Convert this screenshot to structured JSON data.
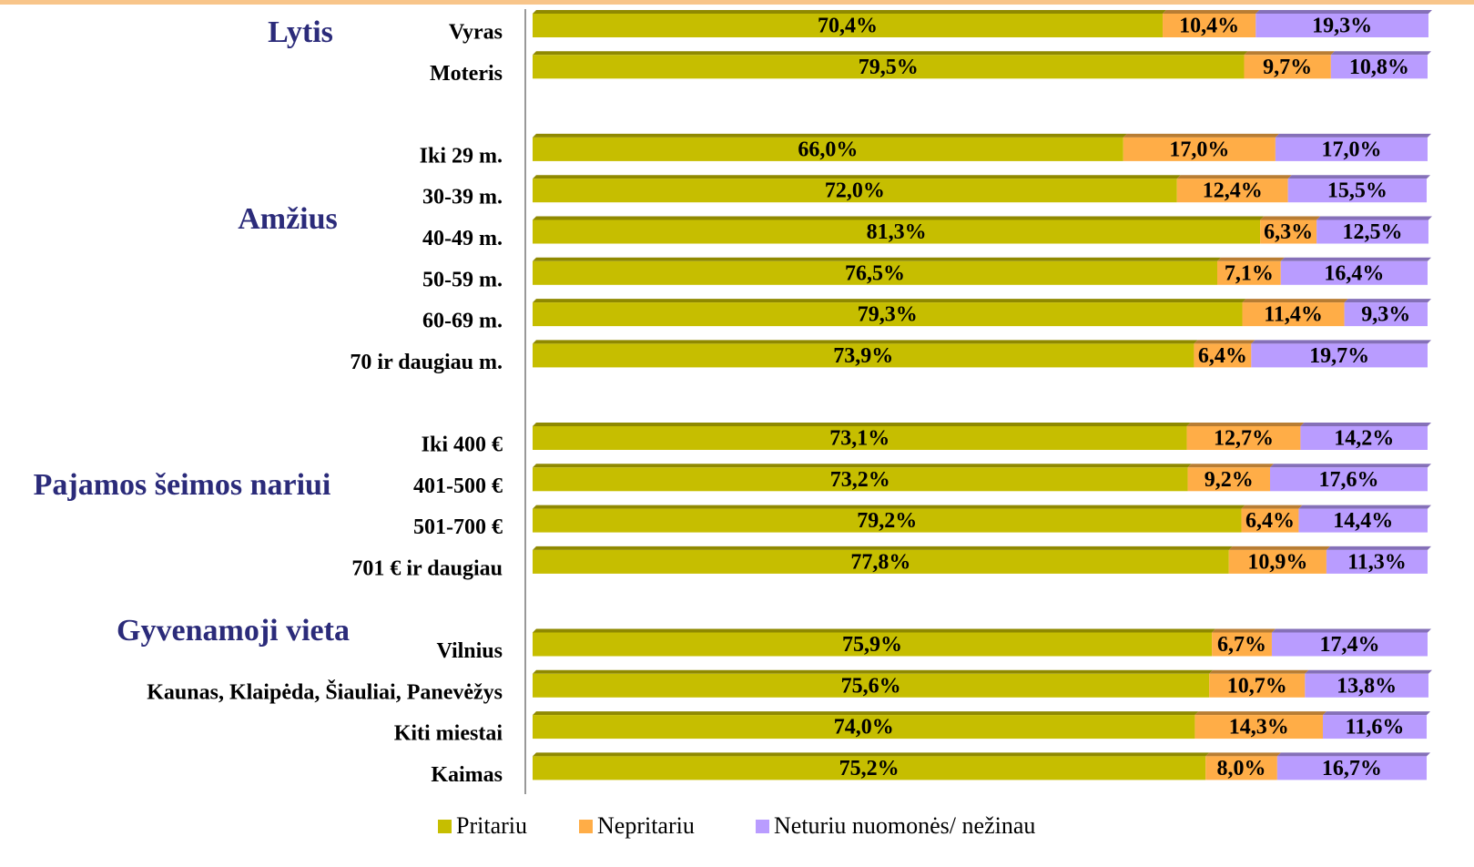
{
  "chart_data": {
    "type": "stacked_barh",
    "annotations": [
      "Lytis",
      "Amžius",
      "Pajamos šeimos nariui",
      "Gyvenamoji vieta"
    ],
    "categories": [
      "Vyras",
      "Moteris",
      null,
      "Iki 29 m.",
      "30-39 m.",
      "40-49 m.",
      "50-59 m.",
      "60-69 m.",
      "70 ir daugiau m.",
      null,
      "Iki 400 €",
      "401-500 €",
      "501-700 €",
      "701 € ir daugiau",
      null,
      "Vilnius",
      "Kaunas, Klaipėda, Šiauliai, Panevėžys",
      "Kiti miestai",
      "Kaimas"
    ],
    "xlim": [
      0,
      100
    ],
    "legend": "bottom",
    "series": [
      {
        "name": "Pritariu",
        "color": "#c6be00",
        "values": [
          70.4,
          79.5,
          null,
          66.0,
          72.0,
          81.3,
          76.5,
          79.3,
          73.9,
          null,
          73.1,
          73.2,
          79.2,
          77.8,
          null,
          75.9,
          75.6,
          74.0,
          75.2
        ],
        "value_labels": [
          "70,4%",
          "79,5%",
          null,
          "66,0%",
          "72,0%",
          "81,3%",
          "76,5%",
          "79,3%",
          "73,9%",
          null,
          "73,1%",
          "73,2%",
          "79,2%",
          "77,8%",
          null,
          "75,9%",
          "75,6%",
          "74,0%",
          "75,2%"
        ]
      },
      {
        "name": "Nepritariu",
        "color": "#ffad47",
        "values": [
          10.4,
          9.7,
          null,
          17.0,
          12.4,
          6.3,
          7.1,
          11.4,
          6.4,
          null,
          12.7,
          9.2,
          6.4,
          10.9,
          null,
          6.7,
          10.7,
          14.3,
          8.0
        ],
        "value_labels": [
          "10,4%",
          "9,7%",
          null,
          "17,0%",
          "12,4%",
          "6,3%",
          "7,1%",
          "11,4%",
          "6,4%",
          null,
          "12,7%",
          "9,2%",
          "6,4%",
          "10,9%",
          null,
          "6,7%",
          "10,7%",
          "14,3%",
          "8,0%"
        ]
      },
      {
        "name": "Neturiu nuomonės/ nežinau",
        "color": "#b99cff",
        "values": [
          19.3,
          10.8,
          null,
          17.0,
          15.5,
          12.5,
          16.4,
          9.3,
          19.7,
          null,
          14.2,
          17.6,
          14.4,
          11.3,
          null,
          17.4,
          13.8,
          11.6,
          16.7
        ],
        "value_labels": [
          "19,3%",
          "10,8%",
          null,
          "17,0%",
          "15,5%",
          "12,5%",
          "16,4%",
          "9,3%",
          "19,7%",
          null,
          "14,2%",
          "17,6%",
          "14,4%",
          "11,3%",
          null,
          "17,4%",
          "13,8%",
          "11,6%",
          "16,7%"
        ]
      }
    ]
  }
}
